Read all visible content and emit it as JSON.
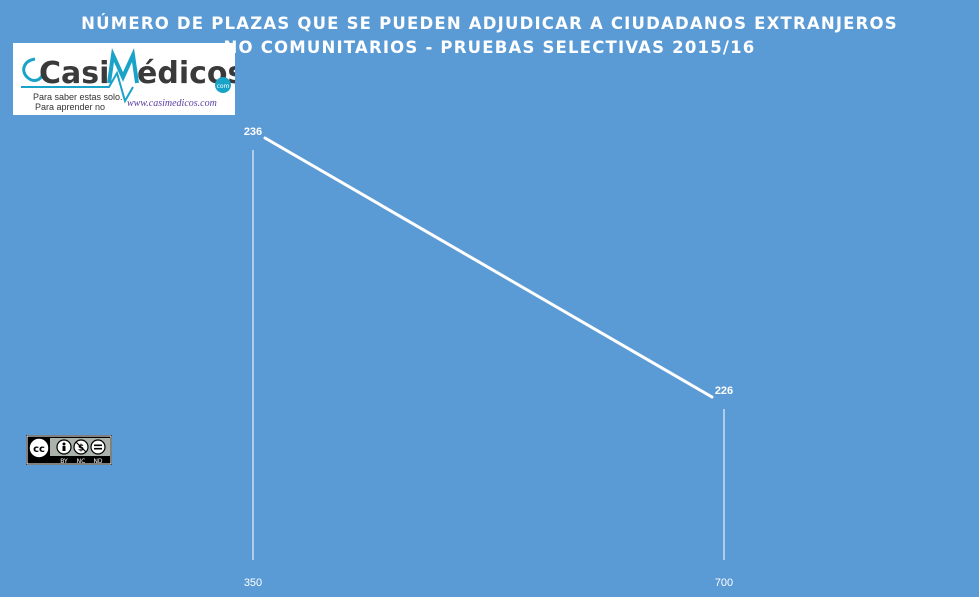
{
  "title": {
    "line1": "NÚMERO DE PLAZAS QUE SE PUEDEN ADJUDICAR A CIUDADANOS EXTRANJEROS",
    "line2": "NO COMUNITARIOS  - PRUEBAS SELECTIVAS 2015/16"
  },
  "logo": {
    "brand_left": "Casi",
    "brand_right": "édicos",
    "brand_com": "com",
    "tagline1": "Para saber estas solo.",
    "tagline2": "Para aprender no",
    "url": "www.casimedicos.com",
    "accent": "#1aa3c8",
    "url_color": "#5a3fa0"
  },
  "license": {
    "labels": [
      "BY",
      "NC",
      "ND"
    ]
  },
  "chart_data": {
    "type": "line",
    "categories": [
      "350",
      "700"
    ],
    "values": [
      236,
      226
    ],
    "data_labels": [
      "236",
      "226"
    ],
    "title": "NÚMERO DE PLAZAS QUE SE PUEDEN ADJUDICAR A CIUDADANOS EXTRANJEROS NO COMUNITARIOS  - PRUEBAS SELECTIVAS 2015/16",
    "xlabel": "",
    "ylabel": "",
    "ylim": [
      225,
      237
    ],
    "grid": false,
    "legend": "none",
    "drop_lines": true,
    "line_color": "#ffffff",
    "background": "#5b9bd5"
  }
}
